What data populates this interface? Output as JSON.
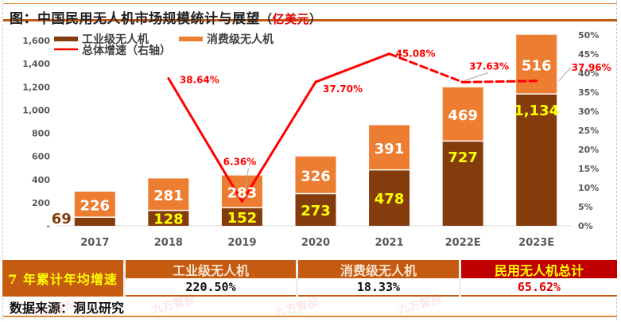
{
  "title": {
    "main": "图：中国民用无人机市场规模统计与展望",
    "paren_open": "（",
    "unit": "亿美元",
    "paren_close": "）"
  },
  "colors": {
    "industrial": "#843c0c",
    "consumer": "#ed7d31",
    "growth_line": "#ff0000",
    "industrial_label": "#ffff00",
    "consumer_label": "#ffffff",
    "growth_label": "#ff0000",
    "axis_text": "#595959"
  },
  "chart_data": {
    "type": "bar",
    "stacked": true,
    "title": "中国民用无人机市场规模统计与展望（亿美元）",
    "categories": [
      "2017",
      "2018",
      "2019",
      "2020",
      "2021",
      "2022E",
      "2023E"
    ],
    "series": [
      {
        "name": "工业级无人机",
        "values": [
          69,
          128,
          152,
          273,
          478,
          727,
          1134
        ],
        "axis": "left"
      },
      {
        "name": "消费级无人机",
        "values": [
          226,
          281,
          283,
          326,
          391,
          469,
          516
        ],
        "axis": "left"
      },
      {
        "name": "总体增速（右轴）",
        "type": "line",
        "axis": "right",
        "values": [
          null,
          38.64,
          6.36,
          37.7,
          45.08,
          37.63,
          37.96
        ],
        "labels": [
          "",
          "38.64%",
          "6.36%",
          "37.70%",
          "45.08%",
          "37.63%",
          "37.96%"
        ],
        "dashed_from_index": 4
      }
    ],
    "y_left": {
      "min": 0,
      "max": 1600,
      "step": 200,
      "ticks": [
        "-",
        "200",
        "400",
        "600",
        "800",
        "1,000",
        "1,200",
        "1,400",
        "1,600"
      ]
    },
    "y_right": {
      "min": 0,
      "max": 50,
      "step": 5,
      "ticks": [
        "0%",
        "5%",
        "10%",
        "15%",
        "20%",
        "25%",
        "30%",
        "35%",
        "40%",
        "45%",
        "50%"
      ]
    },
    "value_labels": {
      "industrial": [
        "69",
        "128",
        "152",
        "273",
        "478",
        "727",
        "1,134"
      ],
      "consumer": [
        "226",
        "281",
        "283",
        "326",
        "391",
        "469",
        "516"
      ]
    },
    "legend": [
      "工业级无人机",
      "消费级无人机",
      "总体增速（右轴）"
    ],
    "legend_position": "top-left",
    "grid": false
  },
  "summary_table": {
    "row_label": "7 年累计年均增速",
    "columns": [
      {
        "header": "工业级无人机",
        "value": "220.50%"
      },
      {
        "header": "消费级无人机",
        "value": "18.33%"
      },
      {
        "header": "民用无人机总计",
        "value": "65.62%"
      }
    ]
  },
  "source": "数据来源：洞见研究",
  "watermark": "九方智投"
}
